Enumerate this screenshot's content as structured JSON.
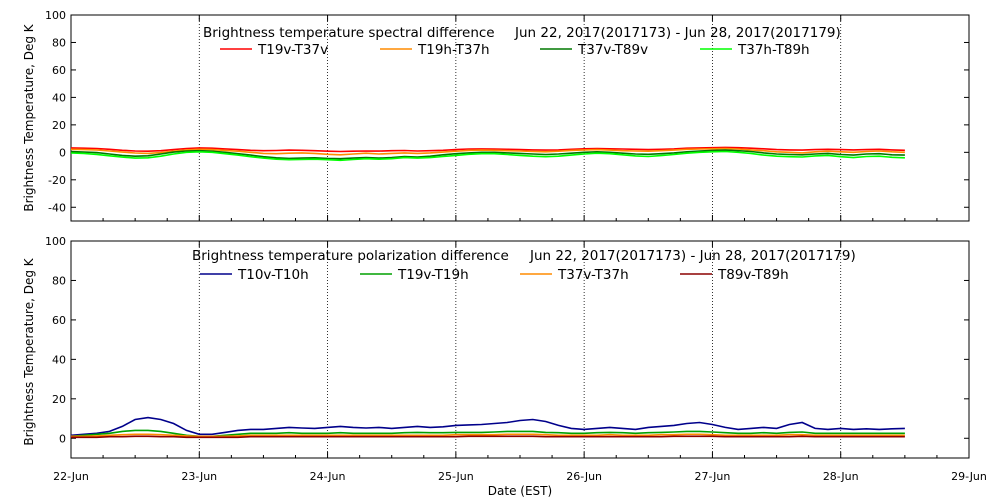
{
  "figure": {
    "xlabel": "Date (EST)",
    "x_tick_labels": [
      "22-Jun",
      "23-Jun",
      "24-Jun",
      "25-Jun",
      "26-Jun",
      "27-Jun",
      "28-Jun",
      "29-Jun"
    ],
    "vertical_gridlines_at": [
      "23-Jun",
      "24-Jun",
      "25-Jun",
      "26-Jun",
      "27-Jun",
      "28-Jun"
    ],
    "background": "#ffffff"
  },
  "chart_data": [
    {
      "type": "line",
      "title": "Brightness temperature spectral difference",
      "date_range": "Jun 22, 2017(2017173) - Jun 28, 2017(2017179)",
      "ylabel": "Brightness Temperature, Deg K",
      "xlim": [
        "2017-06-22",
        "2017-06-29"
      ],
      "ylim": [
        -50,
        100
      ],
      "yticks": [
        -40,
        -20,
        0,
        20,
        40,
        60,
        80,
        100
      ],
      "grid": "dotted vertical at day boundaries",
      "legend_position": "top",
      "x_days": [
        0,
        0.1,
        0.2,
        0.3,
        0.4,
        0.5,
        0.6,
        0.7,
        0.8,
        0.9,
        1.0,
        1.1,
        1.2,
        1.3,
        1.4,
        1.5,
        1.6,
        1.7,
        1.8,
        1.9,
        2.0,
        2.1,
        2.2,
        2.3,
        2.4,
        2.5,
        2.6,
        2.7,
        2.8,
        2.9,
        3.0,
        3.1,
        3.2,
        3.3,
        3.4,
        3.5,
        3.6,
        3.7,
        3.8,
        3.9,
        4.0,
        4.1,
        4.2,
        4.3,
        4.4,
        4.5,
        4.6,
        4.7,
        4.8,
        4.9,
        5.0,
        5.1,
        5.2,
        5.3,
        5.4,
        5.5,
        5.6,
        5.7,
        5.8,
        5.9,
        6.0,
        6.1,
        6.2,
        6.3,
        6.4,
        6.5
      ],
      "series": [
        {
          "name": "T19v-T37v",
          "color": "#ff0000",
          "values": [
            3.2,
            3.0,
            2.8,
            2.2,
            1.5,
            1.0,
            0.8,
            1.2,
            2.0,
            2.8,
            3.2,
            3.0,
            2.5,
            2.0,
            1.5,
            1.2,
            1.3,
            1.6,
            1.5,
            1.2,
            0.8,
            0.6,
            0.8,
            1.0,
            0.9,
            1.2,
            1.3,
            1.0,
            1.2,
            1.5,
            2.0,
            2.4,
            2.5,
            2.4,
            2.2,
            2.0,
            1.8,
            1.6,
            1.8,
            2.2,
            2.6,
            2.8,
            2.6,
            2.4,
            2.2,
            2.0,
            2.2,
            2.5,
            3.0,
            3.2,
            3.4,
            3.6,
            3.4,
            3.0,
            2.6,
            2.0,
            1.8,
            1.6,
            2.0,
            2.2,
            2.0,
            1.8,
            2.0,
            2.2,
            1.8,
            1.5
          ]
        },
        {
          "name": "T19h-T37h",
          "color": "#ff8c00",
          "values": [
            2.2,
            2.0,
            1.8,
            1.0,
            0.2,
            -0.5,
            -0.8,
            -0.2,
            0.8,
            1.8,
            2.2,
            2.0,
            1.4,
            0.8,
            0.0,
            -0.8,
            -1.0,
            -0.6,
            -0.4,
            -0.8,
            -1.4,
            -1.8,
            -1.2,
            -0.6,
            -1.2,
            -0.8,
            -0.4,
            -0.8,
            -0.4,
            0.2,
            0.8,
            1.4,
            1.6,
            1.5,
            1.2,
            1.0,
            0.6,
            0.4,
            0.8,
            1.4,
            1.8,
            2.0,
            1.6,
            1.2,
            1.0,
            0.8,
            1.2,
            1.6,
            2.2,
            2.4,
            2.6,
            2.8,
            2.4,
            1.8,
            1.2,
            0.4,
            0.0,
            -0.4,
            0.4,
            0.8,
            0.4,
            0.0,
            0.6,
            1.0,
            0.4,
            0.0
          ]
        },
        {
          "name": "T37v-T89v",
          "color": "#007800",
          "values": [
            0.5,
            0.2,
            -0.2,
            -1.2,
            -2.2,
            -2.8,
            -2.5,
            -1.2,
            0.2,
            1.0,
            1.2,
            0.8,
            0.0,
            -1.0,
            -2.0,
            -3.2,
            -4.0,
            -4.4,
            -4.2,
            -4.0,
            -4.4,
            -4.6,
            -4.2,
            -3.8,
            -4.2,
            -3.8,
            -3.0,
            -3.4,
            -2.8,
            -1.8,
            -1.0,
            -0.4,
            0.0,
            0.0,
            -0.4,
            -0.8,
            -1.2,
            -1.6,
            -1.2,
            -0.6,
            0.0,
            0.4,
            0.0,
            -0.6,
            -1.2,
            -1.4,
            -1.0,
            -0.4,
            0.4,
            1.0,
            1.4,
            1.6,
            1.2,
            0.6,
            -0.4,
            -1.2,
            -1.6,
            -1.8,
            -1.2,
            -0.8,
            -1.6,
            -2.0,
            -1.2,
            -1.0,
            -1.8,
            -2.0
          ]
        },
        {
          "name": "T37h-T89h",
          "color": "#00ff00",
          "values": [
            -0.5,
            -0.8,
            -1.5,
            -2.5,
            -3.5,
            -4.2,
            -4.0,
            -2.8,
            -1.2,
            0.0,
            0.4,
            0.0,
            -1.0,
            -2.0,
            -3.2,
            -4.2,
            -5.0,
            -5.4,
            -5.2,
            -5.0,
            -5.4,
            -5.8,
            -5.2,
            -4.6,
            -5.0,
            -4.6,
            -3.8,
            -4.2,
            -3.8,
            -3.0,
            -2.2,
            -1.4,
            -1.0,
            -1.0,
            -1.6,
            -2.2,
            -2.8,
            -3.2,
            -2.8,
            -2.0,
            -1.2,
            -0.6,
            -1.0,
            -1.8,
            -2.6,
            -3.0,
            -2.4,
            -1.6,
            -0.6,
            0.0,
            0.4,
            0.6,
            0.0,
            -0.8,
            -2.0,
            -2.8,
            -3.2,
            -3.4,
            -2.6,
            -2.2,
            -3.2,
            -3.8,
            -3.0,
            -2.8,
            -3.6,
            -4.0
          ]
        }
      ]
    },
    {
      "type": "line",
      "title": "Brightness temperature polarization difference",
      "date_range": "Jun 22, 2017(2017173) - Jun 28, 2017(2017179)",
      "ylabel": "Brightness Temperature, Deg K",
      "xlim": [
        "2017-06-22",
        "2017-06-29"
      ],
      "ylim": [
        -10,
        100
      ],
      "yticks": [
        0,
        20,
        40,
        60,
        80,
        100
      ],
      "grid": "dotted vertical at day boundaries",
      "legend_position": "top",
      "x_days": [
        0,
        0.1,
        0.2,
        0.3,
        0.4,
        0.5,
        0.6,
        0.7,
        0.8,
        0.9,
        1.0,
        1.1,
        1.2,
        1.3,
        1.4,
        1.5,
        1.6,
        1.7,
        1.8,
        1.9,
        2.0,
        2.1,
        2.2,
        2.3,
        2.4,
        2.5,
        2.6,
        2.7,
        2.8,
        2.9,
        3.0,
        3.1,
        3.2,
        3.3,
        3.4,
        3.5,
        3.6,
        3.7,
        3.8,
        3.9,
        4.0,
        4.1,
        4.2,
        4.3,
        4.4,
        4.5,
        4.6,
        4.7,
        4.8,
        4.9,
        5.0,
        5.1,
        5.2,
        5.3,
        5.4,
        5.5,
        5.6,
        5.7,
        5.8,
        5.9,
        6.0,
        6.1,
        6.2,
        6.3,
        6.4,
        6.5
      ],
      "series": [
        {
          "name": "T10v-T10h",
          "color": "#00008b",
          "values": [
            1.5,
            2.0,
            2.5,
            3.5,
            6.0,
            9.5,
            10.5,
            9.5,
            7.5,
            4.0,
            2.0,
            2.0,
            3.0,
            4.0,
            4.5,
            4.5,
            5.0,
            5.5,
            5.2,
            5.0,
            5.5,
            6.0,
            5.5,
            5.2,
            5.5,
            5.0,
            5.5,
            6.0,
            5.5,
            5.8,
            6.5,
            6.8,
            7.0,
            7.5,
            8.0,
            9.0,
            9.5,
            8.5,
            6.5,
            5.0,
            4.5,
            5.0,
            5.5,
            5.0,
            4.5,
            5.5,
            6.0,
            6.5,
            7.5,
            8.0,
            7.0,
            5.5,
            4.5,
            5.0,
            5.5,
            5.0,
            7.0,
            8.0,
            5.0,
            4.5,
            5.0,
            4.5,
            4.8,
            4.5,
            4.8,
            5.0
          ]
        },
        {
          "name": "T19v-T19h",
          "color": "#00a000",
          "values": [
            1.0,
            1.5,
            2.0,
            2.5,
            3.5,
            4.0,
            4.0,
            3.5,
            2.5,
            1.5,
            1.0,
            1.0,
            1.5,
            2.0,
            2.5,
            2.5,
            2.5,
            2.8,
            2.5,
            2.5,
            2.5,
            2.8,
            2.5,
            2.5,
            2.5,
            2.5,
            2.8,
            3.0,
            2.8,
            2.8,
            3.0,
            3.0,
            3.0,
            3.2,
            3.5,
            3.5,
            3.5,
            3.0,
            2.8,
            2.5,
            2.5,
            2.8,
            3.0,
            2.8,
            2.5,
            2.8,
            3.0,
            3.2,
            3.5,
            3.5,
            3.2,
            2.8,
            2.5,
            2.5,
            2.8,
            2.5,
            3.0,
            3.2,
            2.5,
            2.5,
            2.5,
            2.5,
            2.5,
            2.5,
            2.5,
            2.5
          ]
        },
        {
          "name": "T37v-T37h",
          "color": "#ff8c00",
          "values": [
            1.0,
            1.0,
            1.2,
            1.5,
            1.8,
            2.0,
            2.0,
            1.8,
            1.5,
            1.2,
            1.0,
            1.0,
            1.0,
            1.2,
            1.5,
            1.5,
            1.5,
            1.5,
            1.5,
            1.5,
            1.5,
            1.5,
            1.5,
            1.5,
            1.5,
            1.5,
            1.5,
            1.5,
            1.5,
            1.5,
            1.8,
            1.8,
            1.8,
            1.8,
            2.0,
            2.0,
            2.0,
            1.8,
            1.5,
            1.5,
            1.5,
            1.5,
            1.8,
            1.5,
            1.5,
            1.5,
            1.8,
            1.8,
            2.0,
            2.0,
            1.8,
            1.5,
            1.5,
            1.5,
            1.5,
            1.5,
            1.8,
            1.8,
            1.5,
            1.5,
            1.5,
            1.5,
            1.5,
            1.5,
            1.5,
            1.5
          ]
        },
        {
          "name": "T89v-T89h",
          "color": "#8b0000",
          "values": [
            0.5,
            0.5,
            0.5,
            0.8,
            0.8,
            1.0,
            1.0,
            0.8,
            0.8,
            0.5,
            0.5,
            0.5,
            0.5,
            0.5,
            0.8,
            0.8,
            0.8,
            0.8,
            0.8,
            0.8,
            0.8,
            0.8,
            0.8,
            0.8,
            0.8,
            0.8,
            0.8,
            0.8,
            0.8,
            0.8,
            0.8,
            1.0,
            1.0,
            1.0,
            1.0,
            1.0,
            1.0,
            0.8,
            0.8,
            0.8,
            0.8,
            0.8,
            0.8,
            0.8,
            0.8,
            0.8,
            0.8,
            1.0,
            1.0,
            1.0,
            1.0,
            0.8,
            0.8,
            0.8,
            0.8,
            0.8,
            0.8,
            1.0,
            0.8,
            0.8,
            0.8,
            0.8,
            0.8,
            0.8,
            0.8,
            0.8
          ]
        }
      ]
    }
  ]
}
